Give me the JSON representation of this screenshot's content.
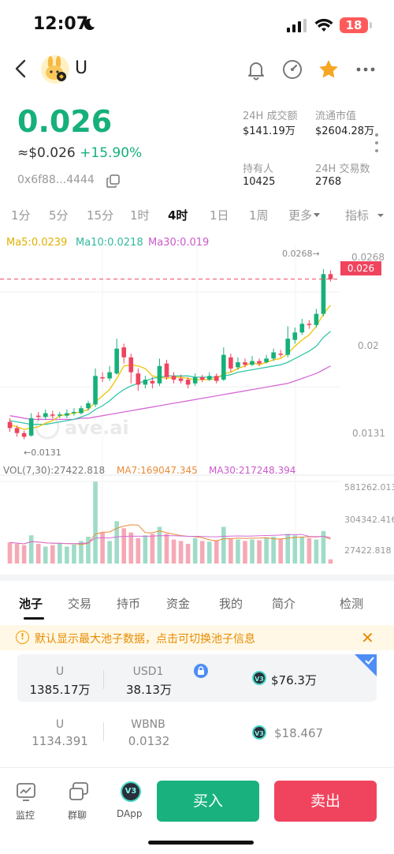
{
  "status_bar": {
    "time": "12:07",
    "battery": "18"
  },
  "header": {
    "token_name": "U"
  },
  "price": {
    "value": "0.026",
    "usd": "≈$0.026",
    "change": "+15.90%",
    "address": "0x6f88...4444"
  },
  "stats": [
    {
      "label": "24H 成交额",
      "value": "$141.19万"
    },
    {
      "label": "流通市值",
      "value": "$2604.28万"
    },
    {
      "label": "持有人",
      "value": "10425"
    },
    {
      "label": "24H 交易数",
      "value": "2768"
    }
  ],
  "intervals": [
    "1分",
    "5分",
    "15分",
    "1时",
    "4时",
    "1日",
    "1周",
    "更多",
    "指标"
  ],
  "active_interval": "4时",
  "ma": {
    "ma5": "Ma5:0.0239",
    "ma10": "Ma10:0.0218",
    "ma30": "Ma30:0.019"
  },
  "chart_labels": {
    "top_price": "0.0268",
    "top_marker": "0.0268→",
    "current": "0.026",
    "mid": "0.02",
    "low": "0.0131",
    "low_marker": "←0.0131",
    "watermark": "ave.ai"
  },
  "volume": {
    "legend_base": "VOL(7,30):27422.818",
    "ma7": "MA7:169047.345",
    "ma30": "MA30:217248.394",
    "tick_top": "581262.013",
    "tick_mid": "304342.416",
    "tick_low": "27422.818"
  },
  "colors": {
    "up": "#16b07a",
    "down": "#f0445e",
    "ma5": "#f2c200",
    "ma10": "#35c7a8",
    "ma30": "#d66ad8"
  },
  "chart_data": {
    "type": "candlestick",
    "ylim": [
      0.0125,
      0.0275
    ],
    "candles": [
      {
        "o": 0.0145,
        "c": 0.014,
        "h": 0.0148,
        "l": 0.0137
      },
      {
        "o": 0.014,
        "c": 0.0136,
        "h": 0.0142,
        "l": 0.0133
      },
      {
        "o": 0.0136,
        "c": 0.0133,
        "h": 0.0138,
        "l": 0.0131
      },
      {
        "o": 0.0134,
        "c": 0.0148,
        "h": 0.0152,
        "l": 0.0133
      },
      {
        "o": 0.015,
        "c": 0.0149,
        "h": 0.0153,
        "l": 0.0146
      },
      {
        "o": 0.0149,
        "c": 0.0152,
        "h": 0.0155,
        "l": 0.0147
      },
      {
        "o": 0.0151,
        "c": 0.015,
        "h": 0.0154,
        "l": 0.0148
      },
      {
        "o": 0.015,
        "c": 0.0151,
        "h": 0.0153,
        "l": 0.0148
      },
      {
        "o": 0.015,
        "c": 0.0152,
        "h": 0.0155,
        "l": 0.0148
      },
      {
        "o": 0.0152,
        "c": 0.0153,
        "h": 0.0156,
        "l": 0.015
      },
      {
        "o": 0.0152,
        "c": 0.0156,
        "h": 0.0158,
        "l": 0.0151
      },
      {
        "o": 0.0156,
        "c": 0.016,
        "h": 0.0162,
        "l": 0.0154
      },
      {
        "o": 0.0159,
        "c": 0.0182,
        "h": 0.0188,
        "l": 0.0157
      },
      {
        "o": 0.0181,
        "c": 0.018,
        "h": 0.0185,
        "l": 0.0177
      },
      {
        "o": 0.018,
        "c": 0.0185,
        "h": 0.019,
        "l": 0.0178
      },
      {
        "o": 0.0184,
        "c": 0.0204,
        "h": 0.0212,
        "l": 0.0183
      },
      {
        "o": 0.0205,
        "c": 0.0197,
        "h": 0.0208,
        "l": 0.0192
      },
      {
        "o": 0.0197,
        "c": 0.0185,
        "h": 0.02,
        "l": 0.0176
      },
      {
        "o": 0.0184,
        "c": 0.0175,
        "h": 0.0188,
        "l": 0.017
      },
      {
        "o": 0.0175,
        "c": 0.0179,
        "h": 0.0182,
        "l": 0.0172
      },
      {
        "o": 0.0178,
        "c": 0.0176,
        "h": 0.0181,
        "l": 0.0172
      },
      {
        "o": 0.0176,
        "c": 0.019,
        "h": 0.0196,
        "l": 0.0174
      },
      {
        "o": 0.0192,
        "c": 0.0181,
        "h": 0.0195,
        "l": 0.0179
      },
      {
        "o": 0.0182,
        "c": 0.0179,
        "h": 0.0185,
        "l": 0.0176
      },
      {
        "o": 0.018,
        "c": 0.0178,
        "h": 0.0183,
        "l": 0.0176
      },
      {
        "o": 0.0179,
        "c": 0.0175,
        "h": 0.0181,
        "l": 0.0172
      },
      {
        "o": 0.0176,
        "c": 0.0181,
        "h": 0.0184,
        "l": 0.0174
      },
      {
        "o": 0.0181,
        "c": 0.0179,
        "h": 0.0183,
        "l": 0.0177
      },
      {
        "o": 0.0179,
        "c": 0.0182,
        "h": 0.0185,
        "l": 0.0178
      },
      {
        "o": 0.0182,
        "c": 0.0178,
        "h": 0.0184,
        "l": 0.0176
      },
      {
        "o": 0.0179,
        "c": 0.0199,
        "h": 0.0205,
        "l": 0.0178
      },
      {
        "o": 0.0197,
        "c": 0.0188,
        "h": 0.02,
        "l": 0.0185
      },
      {
        "o": 0.0189,
        "c": 0.0193,
        "h": 0.0197,
        "l": 0.0187
      },
      {
        "o": 0.0193,
        "c": 0.0191,
        "h": 0.0196,
        "l": 0.0189
      },
      {
        "o": 0.0191,
        "c": 0.0194,
        "h": 0.0198,
        "l": 0.019
      },
      {
        "o": 0.0194,
        "c": 0.0192,
        "h": 0.0196,
        "l": 0.019
      },
      {
        "o": 0.0193,
        "c": 0.0196,
        "h": 0.0199,
        "l": 0.0192
      },
      {
        "o": 0.0196,
        "c": 0.0201,
        "h": 0.0204,
        "l": 0.0194
      },
      {
        "o": 0.02,
        "c": 0.0199,
        "h": 0.0203,
        "l": 0.0197
      },
      {
        "o": 0.0199,
        "c": 0.0212,
        "h": 0.0222,
        "l": 0.0197
      },
      {
        "o": 0.0211,
        "c": 0.0217,
        "h": 0.0221,
        "l": 0.0208
      },
      {
        "o": 0.0217,
        "c": 0.0224,
        "h": 0.0228,
        "l": 0.0215
      },
      {
        "o": 0.0224,
        "c": 0.0223,
        "h": 0.0227,
        "l": 0.022
      },
      {
        "o": 0.0223,
        "c": 0.0232,
        "h": 0.0236,
        "l": 0.0221
      },
      {
        "o": 0.0232,
        "c": 0.0264,
        "h": 0.0268,
        "l": 0.023
      },
      {
        "o": 0.0264,
        "c": 0.026,
        "h": 0.0267,
        "l": 0.0258
      }
    ],
    "ma5": [
      0.0143,
      0.0141,
      0.0139,
      0.014,
      0.0141,
      0.0144,
      0.0146,
      0.015,
      0.0151,
      0.0152,
      0.0153,
      0.0155,
      0.0161,
      0.0166,
      0.0171,
      0.018,
      0.019,
      0.0191,
      0.019,
      0.0188,
      0.0182,
      0.0181,
      0.018,
      0.0181,
      0.0181,
      0.018,
      0.0179,
      0.0179,
      0.0179,
      0.018,
      0.0184,
      0.0185,
      0.0188,
      0.019,
      0.0193,
      0.0191,
      0.0193,
      0.0195,
      0.0196,
      0.02,
      0.0206,
      0.0211,
      0.0215,
      0.0222,
      0.0232,
      0.0239
    ],
    "ma10": [
      0.0146,
      0.0145,
      0.0144,
      0.0143,
      0.0143,
      0.0143,
      0.0144,
      0.0145,
      0.0146,
      0.0147,
      0.0149,
      0.0151,
      0.0155,
      0.0158,
      0.0162,
      0.0167,
      0.0171,
      0.0174,
      0.0176,
      0.0178,
      0.018,
      0.0181,
      0.0182,
      0.0182,
      0.0182,
      0.0182,
      0.0181,
      0.0181,
      0.0181,
      0.0181,
      0.0182,
      0.0183,
      0.0185,
      0.0186,
      0.0187,
      0.0188,
      0.0189,
      0.019,
      0.0191,
      0.0193,
      0.0196,
      0.0199,
      0.0202,
      0.0206,
      0.0213,
      0.0218
    ],
    "ma30": [
      0.015,
      0.0149,
      0.0148,
      0.0147,
      0.0147,
      0.0147,
      0.0147,
      0.0147,
      0.0147,
      0.0147,
      0.0148,
      0.0148,
      0.0149,
      0.015,
      0.0151,
      0.0152,
      0.0153,
      0.0154,
      0.0155,
      0.0156,
      0.0157,
      0.0158,
      0.0159,
      0.016,
      0.0161,
      0.0162,
      0.0163,
      0.0164,
      0.0165,
      0.0166,
      0.0167,
      0.0168,
      0.0169,
      0.017,
      0.0171,
      0.0172,
      0.0173,
      0.0174,
      0.0175,
      0.0176,
      0.0178,
      0.018,
      0.0182,
      0.0184,
      0.0187,
      0.019
    ],
    "volume": {
      "ylim": [
        0,
        581262.013
      ],
      "values": [
        150000,
        140000,
        130000,
        200000,
        140000,
        120000,
        130000,
        145000,
        120000,
        135000,
        160000,
        190000,
        580000,
        220000,
        160000,
        300000,
        250000,
        220000,
        180000,
        200000,
        210000,
        260000,
        210000,
        170000,
        160000,
        140000,
        180000,
        160000,
        155000,
        165000,
        260000,
        175000,
        170000,
        160000,
        170000,
        165000,
        185000,
        190000,
        175000,
        210000,
        200000,
        190000,
        180000,
        170000,
        230000,
        30000
      ]
    }
  },
  "pool_tabs": [
    "池子",
    "交易",
    "持币",
    "资金",
    "我的",
    "简介",
    "检测"
  ],
  "active_pool_tab": "池子",
  "notice": "默认显示最大池子数据，点击可切换池子信息",
  "pools": [
    {
      "token_a": "U",
      "amount_a": "1385.17万",
      "token_b": "USD1",
      "amount_b": "38.13万",
      "value": "$76.3万",
      "selected": true
    },
    {
      "token_a": "U",
      "amount_a": "1134.391",
      "token_b": "WBNB",
      "amount_b": "0.0132",
      "value": "$18.467",
      "selected": false
    }
  ],
  "footer": {
    "monitor": "监控",
    "group_chat": "群聊",
    "dapp": "DApp",
    "buy": "买入",
    "sell": "卖出",
    "v3": "V3"
  }
}
